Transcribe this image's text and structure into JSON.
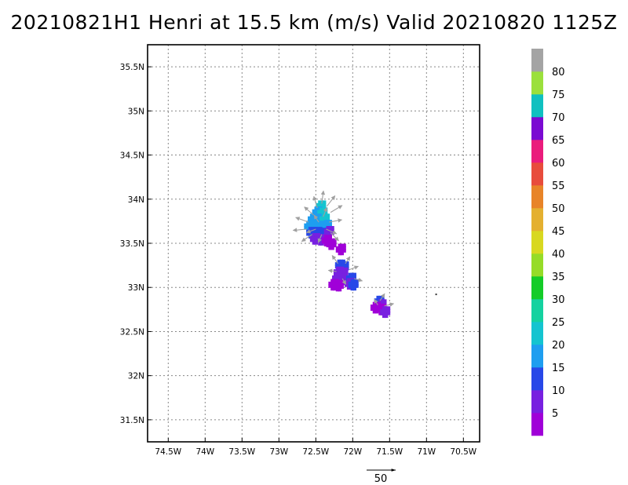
{
  "title": "20210821H1 Henri at 15.5 km (m/s) Valid 20210820 1125Z",
  "lat_ticks": [
    "35.5N",
    "35N",
    "34.5N",
    "34N",
    "33.5N",
    "33N",
    "32.5N",
    "32N",
    "31.5N"
  ],
  "lat_values": [
    35.5,
    35,
    34.5,
    34,
    33.5,
    33,
    32.5,
    32,
    31.5
  ],
  "lon_ticks": [
    "74.5W",
    "74W",
    "73.5W",
    "73W",
    "72.5W",
    "72W",
    "71.5W",
    "71W",
    "70.5W"
  ],
  "lon_values": [
    -74.5,
    -74,
    -73.5,
    -73,
    -72.5,
    -72,
    -71.5,
    -71,
    -70.5
  ],
  "map_extent": {
    "lon": [
      -74.78,
      -70.28
    ],
    "lat": [
      31.25,
      35.75
    ]
  },
  "grid": true,
  "colorbar": {
    "labels": [
      "5",
      "10",
      "15",
      "20",
      "25",
      "30",
      "35",
      "40",
      "45",
      "50",
      "55",
      "60",
      "65",
      "70",
      "75",
      "80"
    ],
    "colors": [
      "#a000d8",
      "#7820e0",
      "#2848e8",
      "#1e9ef0",
      "#14c4d0",
      "#14d2a0",
      "#14cc28",
      "#96dc28",
      "#d8d820",
      "#e4b030",
      "#e88428",
      "#e84c3c",
      "#ea1c7c",
      "#7a0ad2",
      "#10c0c0",
      "#9be03c",
      "#a4a4a4"
    ]
  },
  "reference_vector": {
    "label": "50",
    "value": 50
  },
  "wind_field": [
    {
      "lon": -72.42,
      "lat": 33.93,
      "speed": 20
    },
    {
      "lon": -72.47,
      "lat": 33.86,
      "speed": 18
    },
    {
      "lon": -72.4,
      "lat": 33.85,
      "speed": 22
    },
    {
      "lon": -72.53,
      "lat": 33.78,
      "speed": 17
    },
    {
      "lon": -72.45,
      "lat": 33.78,
      "speed": 18
    },
    {
      "lon": -72.37,
      "lat": 33.78,
      "speed": 21
    },
    {
      "lon": -72.58,
      "lat": 33.7,
      "speed": 16
    },
    {
      "lon": -72.5,
      "lat": 33.7,
      "speed": 15
    },
    {
      "lon": -72.42,
      "lat": 33.7,
      "speed": 17
    },
    {
      "lon": -72.34,
      "lat": 33.71,
      "speed": 15
    },
    {
      "lon": -72.55,
      "lat": 33.63,
      "speed": 13
    },
    {
      "lon": -72.47,
      "lat": 33.63,
      "speed": 11
    },
    {
      "lon": -72.39,
      "lat": 33.62,
      "speed": 10
    },
    {
      "lon": -72.31,
      "lat": 33.64,
      "speed": 9
    },
    {
      "lon": -72.5,
      "lat": 33.56,
      "speed": 6
    },
    {
      "lon": -72.42,
      "lat": 33.55,
      "speed": 5
    },
    {
      "lon": -72.34,
      "lat": 33.54,
      "speed": 4
    },
    {
      "lon": -72.28,
      "lat": 33.5,
      "speed": 3
    },
    {
      "lon": -72.15,
      "lat": 33.44,
      "speed": 4
    },
    {
      "lon": -72.16,
      "lat": 33.26,
      "speed": 14
    },
    {
      "lon": -72.11,
      "lat": 33.24,
      "speed": 12
    },
    {
      "lon": -72.18,
      "lat": 33.18,
      "speed": 8
    },
    {
      "lon": -72.12,
      "lat": 33.17,
      "speed": 9
    },
    {
      "lon": -72.2,
      "lat": 33.11,
      "speed": 5
    },
    {
      "lon": -72.13,
      "lat": 33.1,
      "speed": 6
    },
    {
      "lon": -72.25,
      "lat": 33.04,
      "speed": 4
    },
    {
      "lon": -72.18,
      "lat": 33.03,
      "speed": 3
    },
    {
      "lon": -72.01,
      "lat": 33.11,
      "speed": 12
    },
    {
      "lon": -72.03,
      "lat": 33.05,
      "speed": 8
    },
    {
      "lon": -71.98,
      "lat": 33.04,
      "speed": 10
    },
    {
      "lon": -71.63,
      "lat": 32.85,
      "speed": 11
    },
    {
      "lon": -71.6,
      "lat": 32.81,
      "speed": 9
    },
    {
      "lon": -71.68,
      "lat": 32.78,
      "speed": 4
    },
    {
      "lon": -71.6,
      "lat": 32.76,
      "speed": 3
    },
    {
      "lon": -71.55,
      "lat": 32.73,
      "speed": 5
    }
  ],
  "vectors": [
    {
      "lon": -72.42,
      "lat": 33.95,
      "u": 3,
      "v": 22
    },
    {
      "lon": -72.35,
      "lat": 33.92,
      "u": 14,
      "v": 18
    },
    {
      "lon": -72.48,
      "lat": 33.9,
      "u": -6,
      "v": 20
    },
    {
      "lon": -72.3,
      "lat": 33.85,
      "u": 20,
      "v": 12
    },
    {
      "lon": -72.53,
      "lat": 33.82,
      "u": -16,
      "v": 14
    },
    {
      "lon": -72.4,
      "lat": 33.8,
      "u": 6,
      "v": 16
    },
    {
      "lon": -72.6,
      "lat": 33.74,
      "u": -22,
      "v": 8
    },
    {
      "lon": -72.46,
      "lat": 33.74,
      "u": -8,
      "v": 12
    },
    {
      "lon": -72.32,
      "lat": 33.74,
      "u": 22,
      "v": 4
    },
    {
      "lon": -72.62,
      "lat": 33.66,
      "u": -24,
      "v": -2
    },
    {
      "lon": -72.5,
      "lat": 33.66,
      "u": -16,
      "v": -6
    },
    {
      "lon": -72.36,
      "lat": 33.66,
      "u": 18,
      "v": -8
    },
    {
      "lon": -72.55,
      "lat": 33.6,
      "u": -18,
      "v": -12
    },
    {
      "lon": -72.42,
      "lat": 33.6,
      "u": -6,
      "v": -14
    },
    {
      "lon": -72.3,
      "lat": 33.62,
      "u": 14,
      "v": -14
    },
    {
      "lon": -72.2,
      "lat": 33.27,
      "u": -10,
      "v": 14
    },
    {
      "lon": -72.1,
      "lat": 33.27,
      "u": 8,
      "v": 12
    },
    {
      "lon": -72.05,
      "lat": 33.2,
      "u": 16,
      "v": 6
    },
    {
      "lon": -72.22,
      "lat": 33.18,
      "u": -14,
      "v": 2
    },
    {
      "lon": -71.98,
      "lat": 33.1,
      "u": 14,
      "v": -4
    },
    {
      "lon": -72.14,
      "lat": 33.1,
      "u": 6,
      "v": -10
    },
    {
      "lon": -71.63,
      "lat": 32.85,
      "u": 8,
      "v": 12
    },
    {
      "lon": -71.57,
      "lat": 32.79,
      "u": 16,
      "v": 4
    },
    {
      "lon": -71.66,
      "lat": 32.8,
      "u": -6,
      "v": 10
    }
  ],
  "specks": [
    {
      "lon": -70.88,
      "lat": 32.93
    }
  ]
}
